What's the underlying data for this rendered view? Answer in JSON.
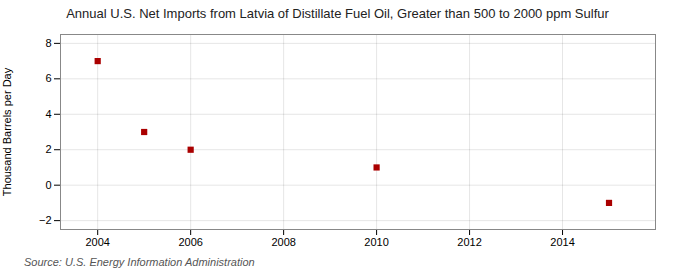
{
  "chart_data": {
    "type": "scatter",
    "title": "Annual U.S. Net Imports from Latvia of Distillate Fuel Oil, Greater than 500 to 2000 ppm Sulfur",
    "ylabel": "Thousand Barrels per Day",
    "source": "Source: U.S. Energy Information Administration",
    "x": [
      2004,
      2005,
      2006,
      2010,
      2015
    ],
    "values": [
      7,
      3,
      2,
      1,
      -1
    ],
    "color": "#aa0000",
    "marker": "square",
    "xlim": [
      2003.2,
      2016.0
    ],
    "ylim": [
      -2.5,
      8.5
    ],
    "xticks": [
      2004,
      2006,
      2008,
      2010,
      2012,
      2014
    ],
    "yticks": [
      -2,
      0,
      2,
      4,
      6,
      8
    ],
    "grid": true
  }
}
